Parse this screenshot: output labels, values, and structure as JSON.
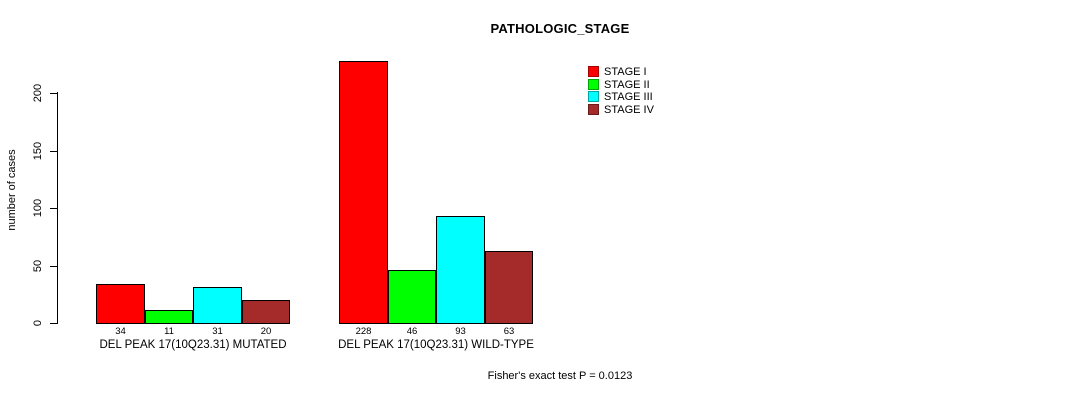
{
  "title": "PATHOLOGIC_STAGE",
  "footer": "Fisher's exact test P = 0.0123",
  "chart_data": {
    "type": "bar",
    "title": "PATHOLOGIC_STAGE",
    "xlabel": "",
    "ylabel": "number of cases",
    "ylim": [
      0,
      230
    ],
    "yticks": [
      0,
      50,
      100,
      150,
      200
    ],
    "grid": false,
    "legend_position": "top-right",
    "categories": [
      "DEL PEAK 17(10Q23.31) MUTATED",
      "DEL PEAK 17(10Q23.31) WILD-TYPE"
    ],
    "series": [
      {
        "name": "STAGE I",
        "color": "#ff0000",
        "values": [
          34,
          228
        ]
      },
      {
        "name": "STAGE II",
        "color": "#00ff00",
        "values": [
          11,
          46
        ]
      },
      {
        "name": "STAGE III",
        "color": "#00ffff",
        "values": [
          31,
          93
        ]
      },
      {
        "name": "STAGE IV",
        "color": "#a52a2a",
        "values": [
          20,
          63
        ]
      }
    ],
    "bar_value_labels": [
      [
        34,
        11,
        31,
        20
      ],
      [
        228,
        46,
        93,
        63
      ]
    ],
    "annotation": "Fisher's exact test P = 0.0123"
  }
}
